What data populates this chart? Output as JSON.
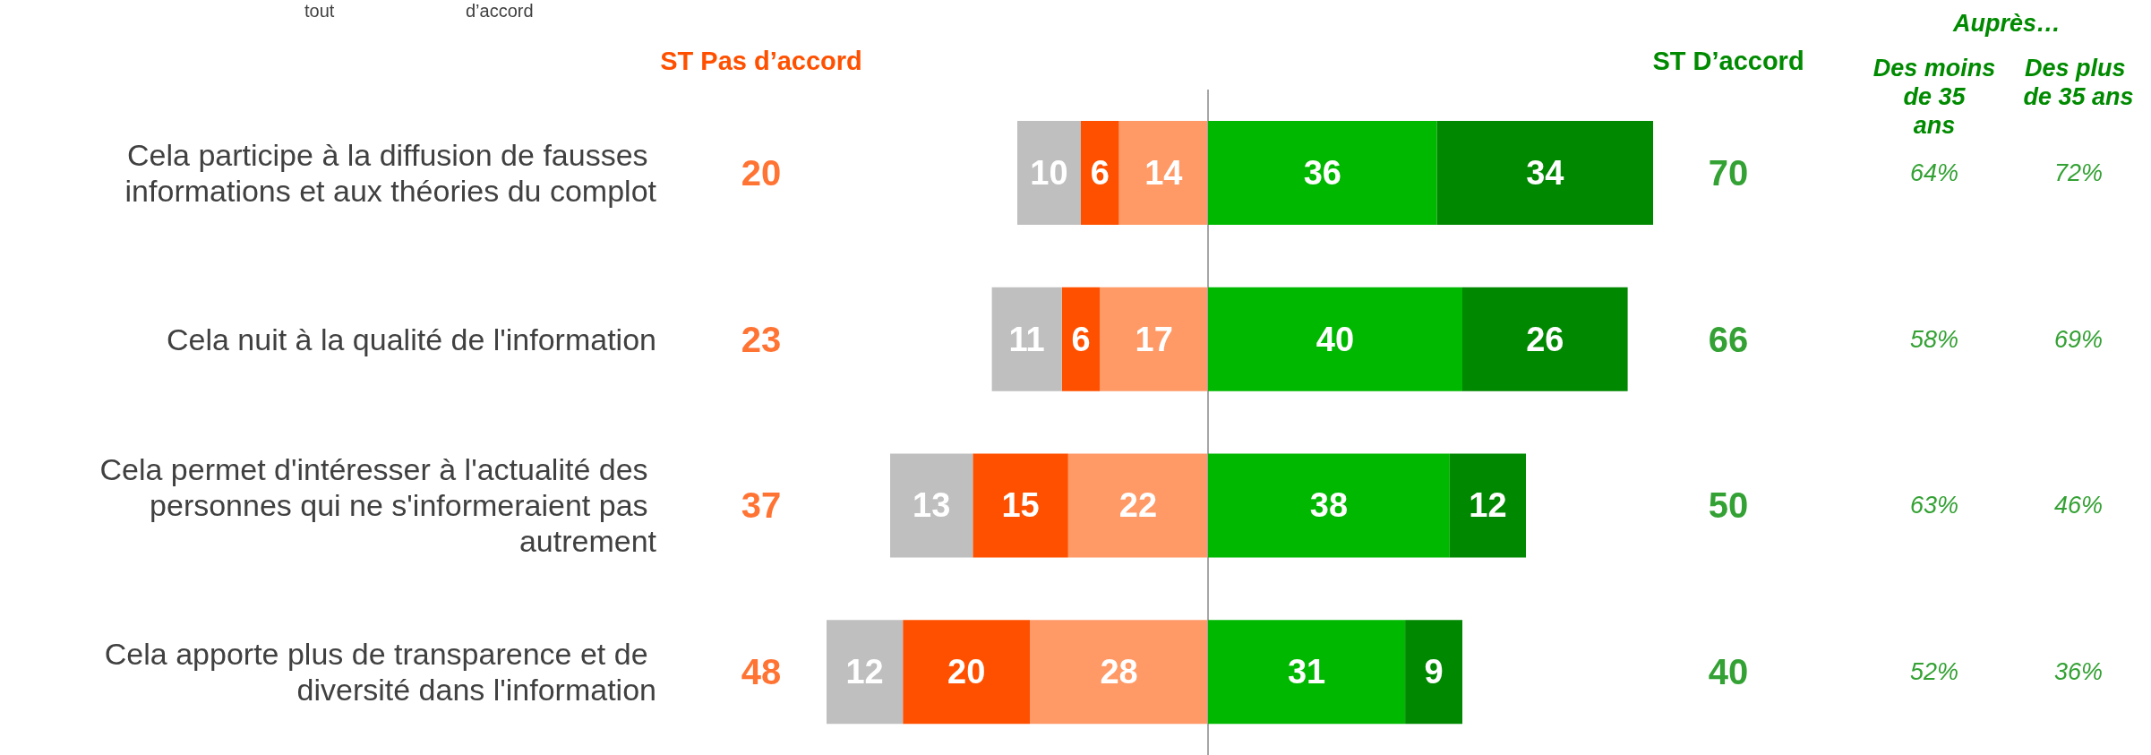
{
  "chart_data": [
    {
      "type": "bar",
      "orientation": "horizontal",
      "stacked": true,
      "categories": [
        "Cela participe à la diffusion de fausses informations et aux théories du complot",
        "Cela nuit à la qualité de l'information",
        "Cela permet d'intéresser à l'actualité des personnes qui ne s'informeraient pas autrement",
        "Cela apporte plus de transparence et de diversité dans l'information"
      ],
      "xlim": [
        60,
        0
      ],
      "series": [
        {
          "color": "#ff9966",
          "values": [
            14,
            17,
            22,
            28
          ]
        },
        {
          "color": "#ff5000",
          "values": [
            6,
            6,
            15,
            20
          ]
        },
        {
          "color": "#bfbfbf",
          "values": [
            10,
            11,
            13,
            12
          ]
        }
      ],
      "data_labels": true,
      "ref_lines": [
        {
          "axis": "x",
          "value": 0,
          "color": "#a6a6a6"
        }
      ],
      "annotations": [
        "tout",
        "d’accord"
      ]
    },
    {
      "type": "bar",
      "orientation": "horizontal",
      "stacked": true,
      "tick_labels": false,
      "categories": [
        null,
        null,
        null,
        null
      ],
      "xlim": [
        0,
        70
      ],
      "series": [
        {
          "color": "#00b800",
          "values": [
            36,
            40,
            38,
            31
          ]
        },
        {
          "color": "#008800",
          "values": [
            34,
            26,
            12,
            9
          ]
        }
      ],
      "data_labels": true
    },
    {
      "type": "other",
      "title": "ST Pas d’accord",
      "categories": [
        null,
        null,
        null,
        null
      ],
      "values": [
        20,
        23,
        37,
        48
      ],
      "color": "#ff5000",
      "data_labels": true
    },
    {
      "type": "other",
      "title": "ST D’accord",
      "categories": [
        null,
        null,
        null,
        null
      ],
      "values": [
        70,
        66,
        50,
        40
      ],
      "color": "#008a00",
      "data_labels": true
    },
    {
      "type": "other",
      "title": "Auprès…",
      "color": "#008a00"
    },
    {
      "type": "other",
      "title": "Des moins de 35 ans",
      "categories": [
        null,
        null,
        null,
        null
      ],
      "values": [
        64,
        58,
        63,
        52
      ],
      "value_labels": [
        "64%",
        "58%",
        "63%",
        "52%"
      ],
      "color": "#008a00"
    },
    {
      "type": "other",
      "title": "Des plus de 35 ans",
      "categories": [
        null,
        null,
        null,
        null
      ],
      "values": [
        72,
        69,
        46,
        36
      ],
      "value_labels": [
        "72%",
        "69%",
        "46%",
        "36%"
      ],
      "color": "#008a00"
    }
  ]
}
